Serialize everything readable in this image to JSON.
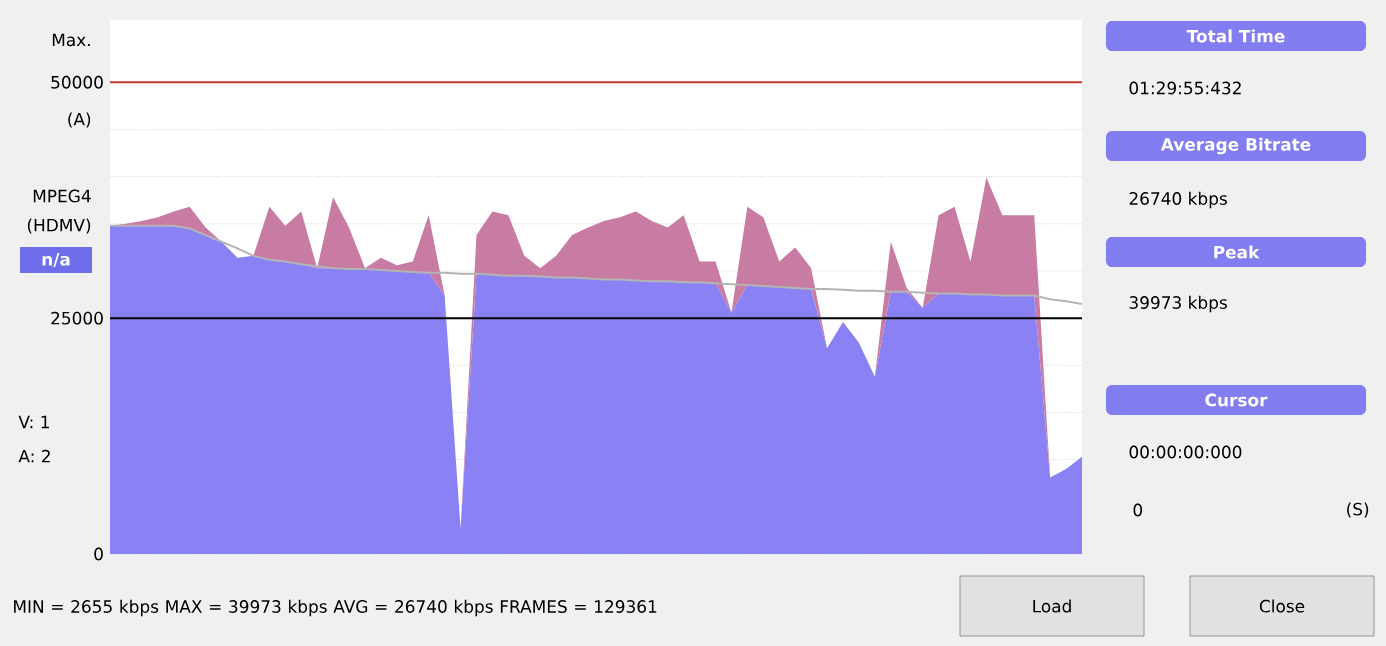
{
  "chart_data": {
    "type": "area",
    "categories": [
      null,
      null,
      null,
      null,
      null,
      null,
      null,
      null,
      null,
      null,
      null,
      null,
      null,
      null,
      null,
      null,
      null,
      null,
      null,
      null,
      null,
      null,
      null,
      null,
      null,
      null,
      null,
      null,
      null,
      null,
      null,
      null,
      null,
      null,
      null,
      null,
      null,
      null,
      null,
      null,
      null,
      null,
      null,
      null,
      null,
      null,
      null,
      null,
      null,
      null,
      null,
      null,
      null,
      null,
      null,
      null,
      null,
      null,
      null,
      null,
      null,
      null
    ],
    "series": [
      {
        "color": "#8a82f4",
        "values": [
          34800,
          34800,
          34800,
          34800,
          34800,
          34500,
          33800,
          33100,
          31400,
          31600,
          31200,
          31000,
          30700,
          30300,
          30300,
          30200,
          30200,
          30100,
          30000,
          29900,
          29800,
          27400,
          2700,
          29700,
          29600,
          29500,
          29500,
          29400,
          29300,
          29300,
          29200,
          29100,
          29100,
          29000,
          28900,
          28900,
          28800,
          28800,
          28700,
          25600,
          28500,
          28400,
          28300,
          28200,
          28100,
          21800,
          24600,
          22400,
          18800,
          27800,
          27800,
          26100,
          27600,
          27600,
          27500,
          27500,
          27400,
          27400,
          27400,
          8100,
          9000,
          10300
        ]
      },
      {
        "color": "#c87ba3",
        "values": [
          0,
          200,
          500,
          900,
          1500,
          2300,
          800,
          0,
          0,
          0,
          5600,
          3800,
          5600,
          0,
          7500,
          4400,
          100,
          1300,
          600,
          1100,
          6100,
          0,
          0,
          4100,
          6700,
          6400,
          2100,
          900,
          2300,
          4500,
          5400,
          6200,
          6600,
          7300,
          6400,
          5700,
          7100,
          2200,
          2300,
          0,
          8300,
          7300,
          2700,
          4300,
          2200,
          0,
          0,
          0,
          0,
          5300,
          400,
          0,
          8300,
          9200,
          3500,
          12400,
          8500,
          8500,
          8500,
          0,
          0,
          0
        ]
      },
      {
        "type": "line",
        "color": "#b4b4b4",
        "values": [
          34800,
          34800,
          34800,
          34800,
          34800,
          34500,
          33800,
          33100,
          32400,
          31600,
          31200,
          31000,
          30700,
          30500,
          30300,
          30200,
          30200,
          30100,
          30000,
          29900,
          29800,
          29800,
          29700,
          29700,
          29600,
          29500,
          29500,
          29400,
          29300,
          29300,
          29200,
          29100,
          29100,
          29000,
          28900,
          28900,
          28800,
          28800,
          28700,
          28600,
          28500,
          28400,
          28300,
          28200,
          28100,
          28100,
          28000,
          27900,
          27900,
          27800,
          27800,
          27700,
          27600,
          27600,
          27500,
          27500,
          27400,
          27400,
          27400,
          27000,
          26800,
          26500
        ]
      }
    ],
    "stacked": true,
    "ylim": [
      0,
      56600
    ],
    "yticks": [
      0,
      {
        "value": 5000,
        "label": null
      },
      {
        "value": 10000,
        "label": null
      },
      {
        "value": 15000,
        "label": null
      },
      {
        "value": 20000,
        "label": null
      },
      25000,
      {
        "value": 30000,
        "label": null
      },
      {
        "value": 35000,
        "label": null
      },
      {
        "value": 40000,
        "label": null
      },
      {
        "value": 45000,
        "label": null
      },
      50000
    ],
    "grid": "y",
    "ref_lines": [
      {
        "axis": "y",
        "value": 50000,
        "color": "#c0392b"
      },
      {
        "axis": "y",
        "value": 25000,
        "color": "#000000"
      }
    ],
    "annotations": [
      "Max.",
      "(A)",
      "MPEG4",
      "(HDMV)",
      "n/a",
      "V:  1",
      "A:  2",
      "Total Time",
      "01:29:55:432",
      "Average Bitrate",
      "26740 kbps",
      "Peak",
      "39973 kbps",
      "Cursor",
      "00:00:00:000",
      "0",
      "(S)",
      "MIN = 2655 kbps  MAX = 39973 kbps  AVG = 26740 kbps  FRAMES = 129361",
      "Load",
      "Close"
    ]
  }
}
